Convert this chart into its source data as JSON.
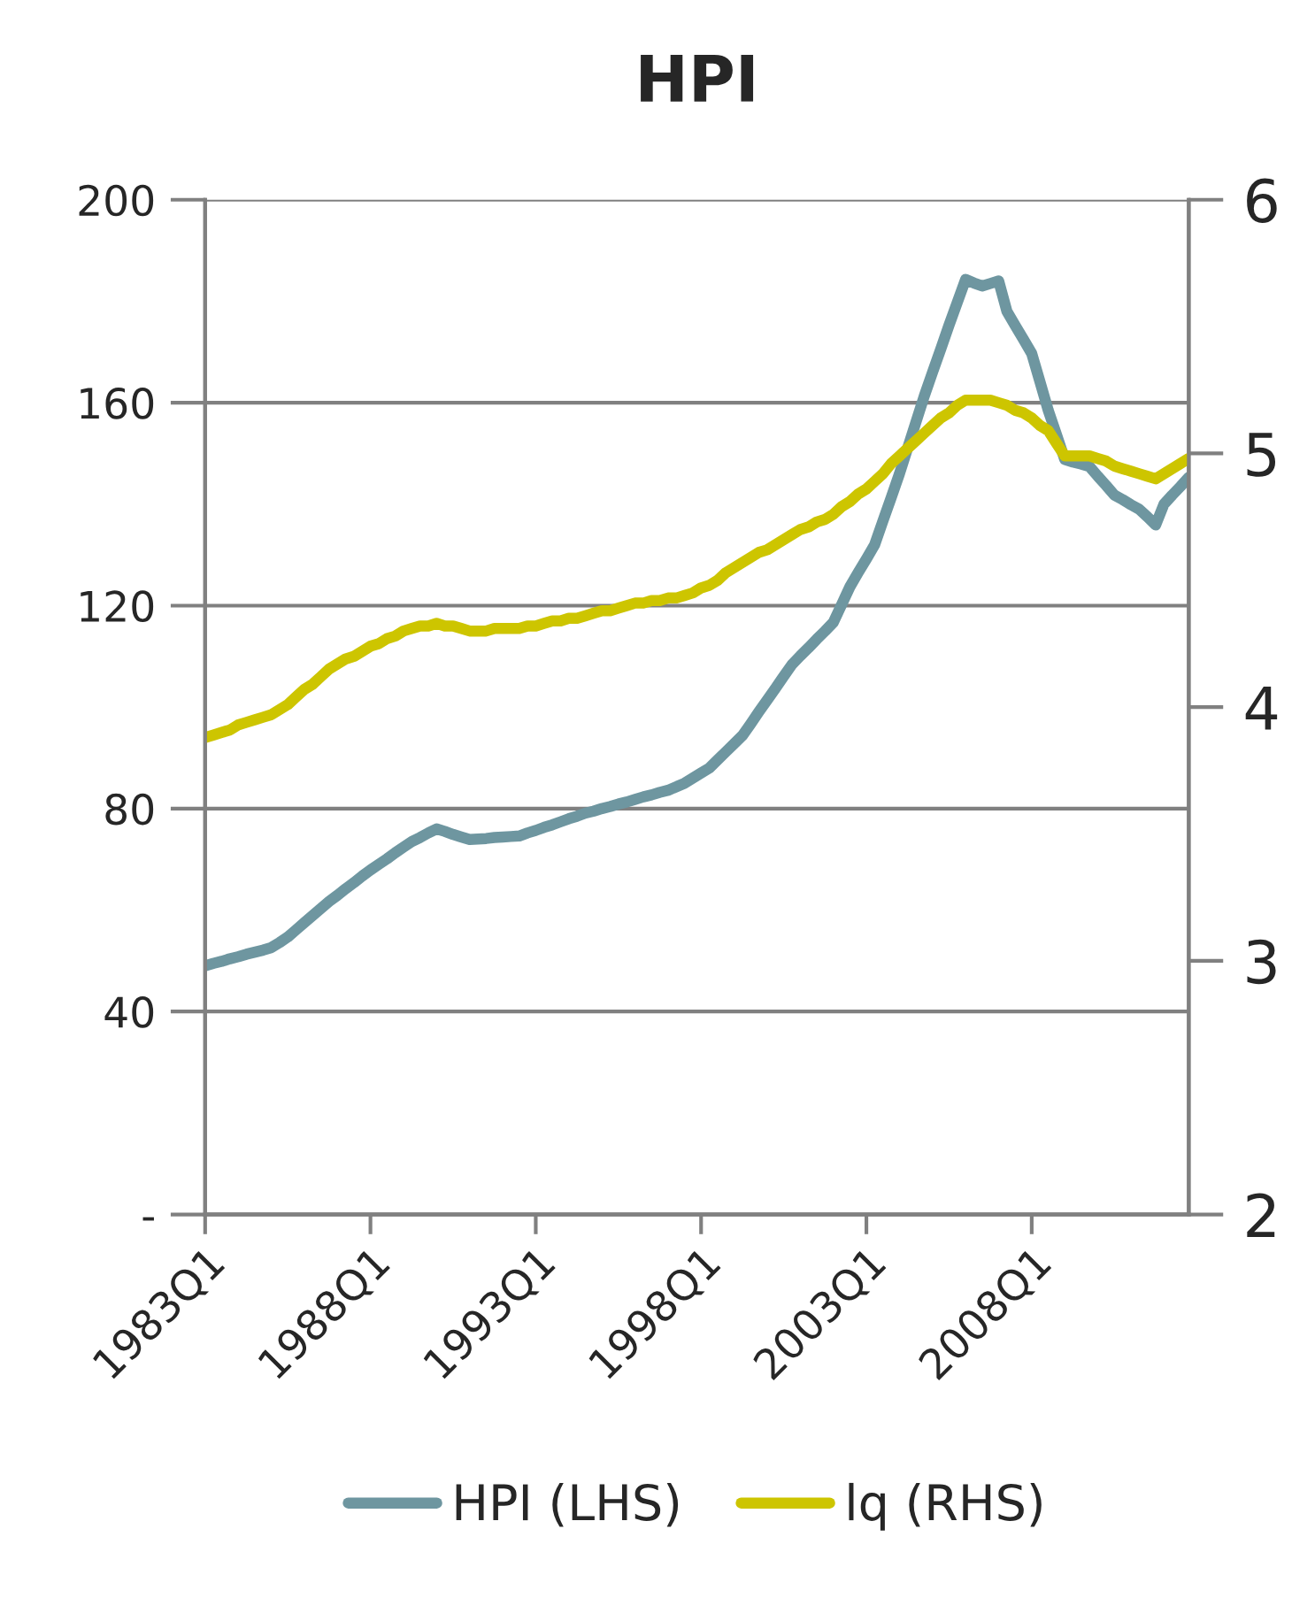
{
  "chart_data": {
    "type": "line",
    "title": "HPI",
    "categories": [
      "1983Q1",
      null,
      null,
      null,
      null,
      null,
      null,
      null,
      null,
      null,
      null,
      null,
      null,
      null,
      null,
      null,
      null,
      null,
      null,
      null,
      "1988Q1",
      null,
      null,
      null,
      null,
      null,
      null,
      null,
      null,
      null,
      null,
      null,
      null,
      null,
      null,
      null,
      null,
      null,
      null,
      null,
      "1993Q1",
      null,
      null,
      null,
      null,
      null,
      null,
      null,
      null,
      null,
      null,
      null,
      null,
      null,
      null,
      null,
      null,
      null,
      null,
      null,
      "1998Q1",
      null,
      null,
      null,
      null,
      null,
      null,
      null,
      null,
      null,
      null,
      null,
      null,
      null,
      null,
      null,
      null,
      null,
      null,
      null,
      "2003Q1",
      null,
      null,
      null,
      null,
      null,
      null,
      null,
      null,
      null,
      null,
      null,
      null,
      null,
      null,
      null,
      null,
      null,
      null,
      null,
      "2008Q1",
      null,
      null,
      null,
      null,
      null,
      null,
      null,
      null,
      null,
      null,
      null,
      null,
      null,
      null,
      null,
      null,
      null,
      null,
      null
    ],
    "ylim": [
      0,
      200
    ],
    "yticks": [
      {
        "value": 0,
        "label": "-"
      },
      40,
      80,
      120,
      160,
      200
    ],
    "y2lim": [
      2,
      6
    ],
    "y2ticks": [
      2,
      3,
      4,
      5,
      6
    ],
    "grid": "y",
    "legend": "bottom",
    "series": [
      {
        "name": "HPI (LHS)",
        "color": "#6e96a0",
        "values": [
          49,
          49.5,
          49.9,
          50.4,
          50.8,
          51.3,
          51.7,
          52.1,
          52.6,
          53.6,
          54.7,
          56.1,
          57.5,
          58.9,
          60.3,
          61.7,
          62.9,
          64.2,
          65.4,
          66.7,
          67.9,
          69,
          70.1,
          71.3,
          72.4,
          73.5,
          74.3,
          75.2,
          76,
          75.5,
          74.9,
          74.4,
          73.9,
          74,
          74.1,
          74.3,
          74.4,
          74.5,
          74.6,
          75.2,
          75.7,
          76.3,
          76.8,
          77.4,
          78,
          78.5,
          79.1,
          79.5,
          80,
          80.4,
          80.9,
          81.3,
          81.8,
          82.3,
          82.7,
          83.2,
          83.6,
          84.3,
          85,
          86,
          87,
          88,
          89.6,
          91.2,
          92.8,
          94.4,
          96.7,
          99.1,
          101.4,
          103.7,
          106.1,
          108.4,
          110.1,
          111.7,
          113.4,
          115,
          116.7,
          120.2,
          123.7,
          126.5,
          129.2,
          132,
          136.7,
          141.3,
          146,
          151.1,
          156.2,
          161.3,
          166,
          170.6,
          175.3,
          179.8,
          184.3,
          183.6,
          183,
          183.5,
          184,
          178,
          175.2,
          172.5,
          169.7,
          164.1,
          158.5,
          153.7,
          148.8,
          148.3,
          147.9,
          147.4,
          145.5,
          143.7,
          141.8,
          140.9,
          139.9,
          139,
          137.5,
          135.9,
          140,
          141.8,
          143.5,
          145.3
        ]
      },
      {
        "name": "lq (RHS)",
        "color": "#cdc500",
        "axis": "y2",
        "values": [
          3.88,
          3.89,
          3.9,
          3.91,
          3.93,
          3.94,
          3.95,
          3.96,
          3.97,
          3.99,
          4.01,
          4.04,
          4.07,
          4.09,
          4.12,
          4.15,
          4.17,
          4.19,
          4.2,
          4.22,
          4.24,
          4.25,
          4.27,
          4.28,
          4.3,
          4.31,
          4.32,
          4.32,
          4.33,
          4.32,
          4.32,
          4.31,
          4.3,
          4.3,
          4.3,
          4.31,
          4.31,
          4.31,
          4.31,
          4.32,
          4.32,
          4.33,
          4.34,
          4.34,
          4.35,
          4.35,
          4.36,
          4.37,
          4.38,
          4.38,
          4.39,
          4.4,
          4.41,
          4.41,
          4.42,
          4.42,
          4.43,
          4.43,
          4.44,
          4.45,
          4.47,
          4.48,
          4.5,
          4.53,
          4.55,
          4.57,
          4.59,
          4.61,
          4.62,
          4.64,
          4.66,
          4.68,
          4.7,
          4.71,
          4.73,
          4.74,
          4.76,
          4.79,
          4.81,
          4.84,
          4.86,
          4.89,
          4.92,
          4.96,
          4.99,
          5.02,
          5.05,
          5.08,
          5.11,
          5.14,
          5.16,
          5.19,
          5.21,
          5.21,
          5.21,
          5.21,
          5.2,
          5.19,
          5.17,
          5.16,
          5.14,
          5.11,
          5.09,
          5.04,
          4.99,
          4.99,
          4.99,
          4.99,
          4.98,
          4.97,
          4.95,
          4.94,
          4.93,
          4.92,
          4.91,
          4.9,
          4.92,
          4.94,
          4.96,
          4.98
        ]
      }
    ]
  }
}
